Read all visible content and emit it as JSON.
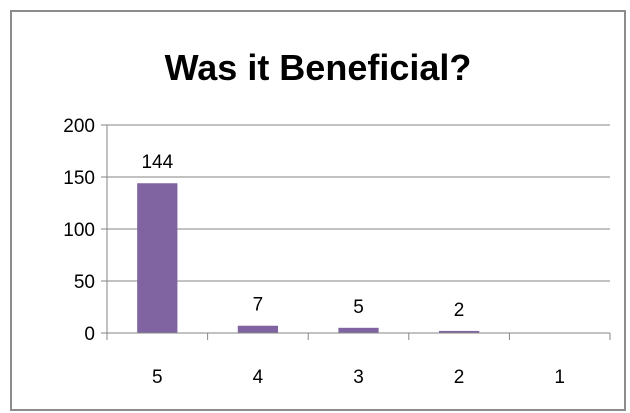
{
  "chart_data": {
    "type": "bar",
    "title": "Was it Beneficial?",
    "xlabel": "",
    "ylabel": "",
    "categories": [
      "5",
      "4",
      "3",
      "2",
      "1"
    ],
    "values": [
      144,
      7,
      5,
      2,
      0
    ],
    "data_labels": [
      "144",
      "7",
      "5",
      "2",
      ""
    ],
    "ylim": [
      0,
      200
    ],
    "yticks": [
      0,
      50,
      100,
      150,
      200
    ],
    "ytick_labels": [
      "0",
      "50",
      "100",
      "150",
      "200"
    ],
    "grid": true,
    "legend": "none",
    "bar_color": "#8064A2"
  }
}
